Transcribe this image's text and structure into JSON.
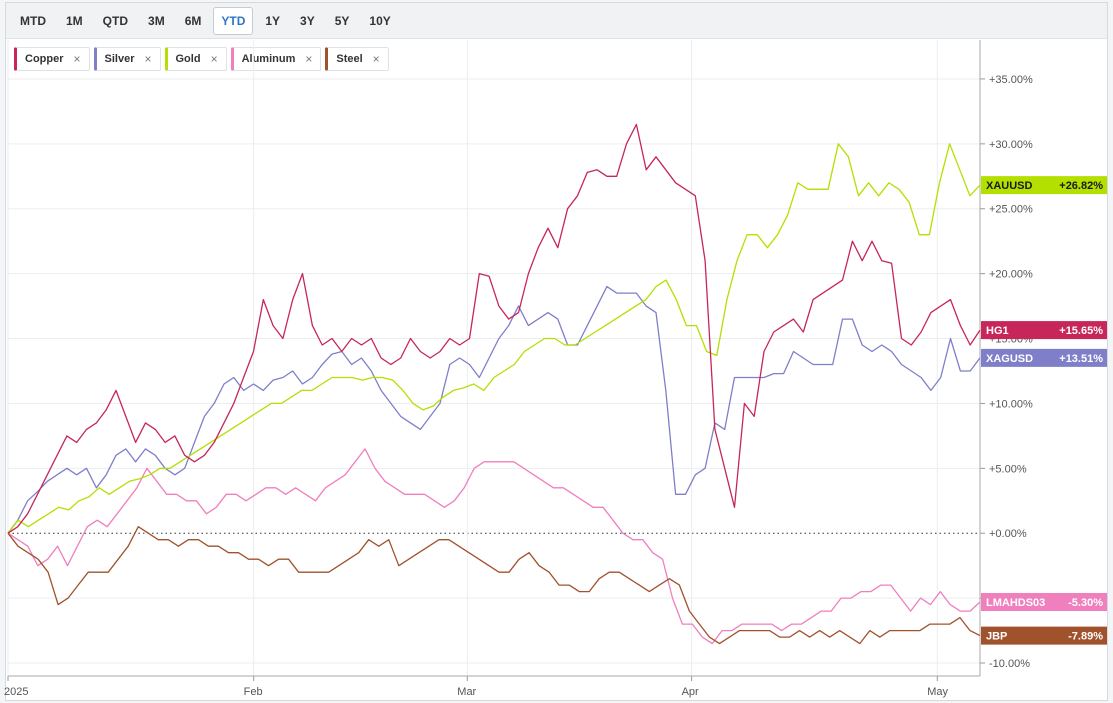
{
  "toolbar": {
    "ranges": [
      "MTD",
      "1M",
      "QTD",
      "3M",
      "6M",
      "YTD",
      "1Y",
      "3Y",
      "5Y",
      "10Y"
    ],
    "active": "YTD"
  },
  "legend": [
    {
      "label": "Copper",
      "color": "#c6265a"
    },
    {
      "label": "Silver",
      "color": "#7f7fc9"
    },
    {
      "label": "Gold",
      "color": "#b3e000"
    },
    {
      "label": "Aluminum",
      "color": "#f07fbe"
    },
    {
      "label": "Steel",
      "color": "#a0522d"
    }
  ],
  "legend_close_glyph": "×",
  "chart_data": {
    "type": "line",
    "y_tick_labels": [
      "+35.00%",
      "+30.00%",
      "+25.00%",
      "+20.00%",
      "+15.00%",
      "+10.00%",
      "+5.00%",
      "+0.00%",
      "-5.00%",
      "-10.00%"
    ],
    "y_ticks": [
      35,
      30,
      25,
      20,
      15,
      10,
      5,
      0,
      -5,
      -10
    ],
    "x_tick_labels": [
      "2025",
      "Feb",
      "Mar",
      "Apr",
      "May"
    ],
    "x_ticks": [
      0,
      23,
      43,
      64,
      87
    ],
    "ylim": [
      -11,
      38
    ],
    "xlim": [
      0,
      91
    ],
    "zero_line": "dotted",
    "grid": true,
    "series": [
      {
        "name": "Copper",
        "color": "#c6265a",
        "badge": "HG1",
        "last_label": "+15.65%",
        "values": [
          0,
          0.5,
          1.5,
          3,
          4.5,
          6,
          7.5,
          7,
          8,
          8.5,
          9.5,
          11,
          9,
          7,
          8.5,
          8,
          7,
          7.5,
          6,
          5.5,
          6,
          7,
          8.5,
          10,
          12,
          14,
          18,
          16,
          15,
          18,
          20,
          16,
          14.5,
          15,
          14,
          15,
          14.5,
          15,
          13.5,
          13,
          13.5,
          15,
          14,
          13.5,
          14,
          15,
          14.5,
          15,
          20,
          19.8,
          17.5,
          16.5,
          17,
          20,
          22,
          23.5,
          22,
          25,
          26,
          27.8,
          28,
          27.5,
          27.5,
          30,
          31.5,
          28,
          29,
          28,
          27,
          26.5,
          26,
          21,
          8,
          5,
          2,
          10,
          9,
          14,
          15.5,
          16,
          16.5,
          15.5,
          18,
          18.5,
          19,
          19.5,
          22.5,
          21,
          22.5,
          21,
          20.8,
          15,
          14.5,
          15.5,
          17,
          17.5,
          18,
          16,
          14.5,
          15.65
        ]
      },
      {
        "name": "Silver",
        "color": "#7f7fc9",
        "badge": "XAGUSD",
        "last_label": "+13.51%",
        "values": [
          0,
          1,
          2.5,
          3.2,
          4,
          4.5,
          5,
          4.5,
          5,
          3.5,
          4.5,
          6,
          6.5,
          5.5,
          6.5,
          6,
          5,
          4.5,
          5,
          7,
          9,
          10,
          11.5,
          12,
          11,
          11.5,
          11,
          11.8,
          12,
          12.5,
          11.5,
          12,
          13,
          13.8,
          14,
          13,
          13.5,
          12.5,
          11,
          10,
          9,
          8.5,
          8,
          9,
          10,
          13,
          13.5,
          13,
          12,
          13.5,
          15,
          16,
          17.5,
          16,
          16.5,
          17,
          16.5,
          14.5,
          14.5,
          16,
          17.5,
          19,
          18.5,
          18.5,
          18.5,
          17.5,
          17,
          11,
          3,
          3,
          4.5,
          5,
          8.5,
          8,
          12,
          12,
          12,
          12,
          12.3,
          12.3,
          14,
          13.5,
          13,
          13,
          13,
          16.5,
          16.5,
          14.5,
          14,
          14.5,
          14,
          13,
          12.5,
          12,
          11,
          12,
          15,
          12.5,
          12.5,
          13.51
        ]
      },
      {
        "name": "Gold",
        "color": "#b3e000",
        "badge": "XAUUSD",
        "last_label": "+26.82%",
        "values": [
          0,
          1,
          0.5,
          1,
          1.5,
          2,
          1.8,
          2.5,
          2.8,
          3.5,
          3,
          3.5,
          4,
          4.2,
          4.5,
          5,
          5,
          5.5,
          6,
          6.5,
          7,
          7.5,
          8,
          8.5,
          9,
          9.5,
          10,
          10,
          10.5,
          11,
          11,
          11.5,
          12,
          12,
          12,
          11.8,
          12,
          12,
          11.8,
          11,
          10,
          9.5,
          9.8,
          10.5,
          11,
          11.2,
          11.5,
          11,
          12,
          12.5,
          13,
          14,
          14.5,
          15,
          15,
          14.5,
          14.5,
          15,
          15.5,
          16,
          16.5,
          17,
          17.5,
          18,
          19,
          19.5,
          18,
          16,
          16,
          14,
          13.7,
          18,
          21,
          23,
          23,
          22,
          23,
          24.5,
          27,
          26.5,
          26.5,
          26.5,
          30,
          29,
          26,
          27,
          26,
          27,
          26.5,
          25.5,
          23,
          23,
          27,
          30,
          28,
          26,
          26.82
        ]
      },
      {
        "name": "Aluminum",
        "color": "#f07fbe",
        "badge": "LMAHDS03",
        "last_label": "-5.30%",
        "values": [
          0,
          -0.5,
          -1,
          -2.5,
          -2,
          -1,
          -2.5,
          -1,
          0.5,
          1,
          0.5,
          1.5,
          2.5,
          3.5,
          5,
          4,
          3,
          3,
          2.5,
          2.5,
          1.5,
          2,
          3,
          3,
          2.5,
          3,
          3.5,
          3.5,
          3,
          3.5,
          3,
          2.5,
          3.5,
          4,
          4.5,
          5.5,
          6.5,
          5,
          4,
          3.5,
          3,
          3,
          3,
          2.5,
          2,
          2.5,
          3.5,
          5,
          5.5,
          5.5,
          5.5,
          5.5,
          5,
          4.5,
          4,
          3.5,
          3.5,
          3,
          2.5,
          2,
          2,
          1,
          0,
          -0.5,
          -0.5,
          -1.5,
          -2,
          -5,
          -7,
          -7,
          -8,
          -8.5,
          -7.5,
          -7.5,
          -7,
          -7,
          -7,
          -7,
          -7.5,
          -7,
          -7,
          -6.5,
          -6,
          -6,
          -5,
          -5,
          -4.5,
          -4.5,
          -4,
          -4,
          -5,
          -6,
          -5,
          -5.5,
          -4.5,
          -5.5,
          -6,
          -6,
          -5.3
        ]
      },
      {
        "name": "Steel",
        "color": "#a0522d",
        "badge": "JBP",
        "last_label": "-7.89%",
        "values": [
          0,
          -1,
          -1.5,
          -2,
          -3,
          -5.5,
          -5,
          -4,
          -3,
          -3,
          -3,
          -2,
          -1,
          0.5,
          0,
          -0.5,
          -0.5,
          -1,
          -0.5,
          -0.5,
          -1,
          -1,
          -1.5,
          -1.5,
          -2,
          -2,
          -2.5,
          -2,
          -2,
          -3,
          -3,
          -3,
          -3,
          -2.5,
          -2,
          -1.5,
          -0.5,
          -1,
          -0.5,
          -2.5,
          -2,
          -1.5,
          -1,
          -0.5,
          -0.5,
          -1,
          -1.5,
          -2,
          -2.5,
          -3,
          -3,
          -2,
          -1.5,
          -2.5,
          -3,
          -4,
          -4,
          -4.5,
          -4.5,
          -3.5,
          -3,
          -3,
          -3.5,
          -4,
          -4.5,
          -4,
          -3.5,
          -4,
          -6,
          -7,
          -8,
          -8.5,
          -8,
          -7.5,
          -7.5,
          -7.5,
          -7.5,
          -8,
          -8,
          -7.5,
          -8,
          -7.5,
          -8,
          -7.5,
          -8,
          -8.5,
          -7.5,
          -8,
          -7.5,
          -7.5,
          -7.5,
          -7.5,
          -7,
          -7,
          -7,
          -6.5,
          -7.5,
          -7.89
        ]
      }
    ]
  }
}
